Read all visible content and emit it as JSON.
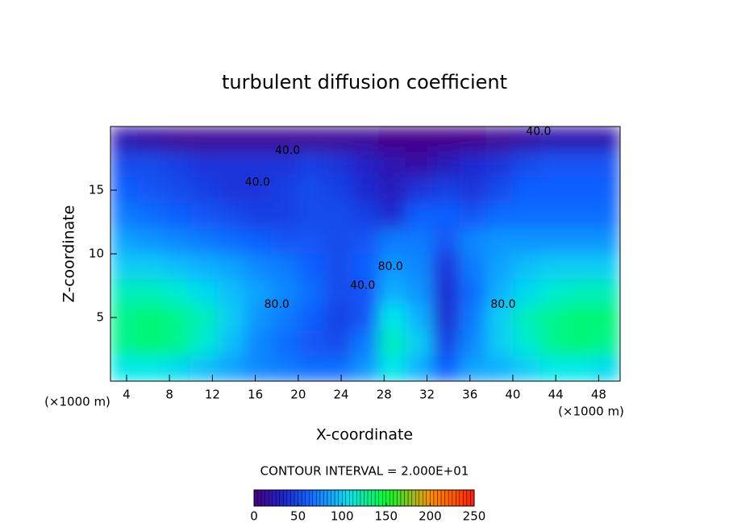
{
  "chart_data": {
    "type": "contour",
    "title": "turbulent diffusion coefficient",
    "x_label": "X-coordinate",
    "y_label": "Z-coordinate",
    "x_unit": "(×1000 m)",
    "y_unit": "(×1000 m)",
    "xlim": [
      2.5,
      50
    ],
    "ylim": [
      0,
      20
    ],
    "xticks": [
      4,
      8,
      12,
      16,
      20,
      24,
      28,
      32,
      36,
      40,
      44,
      48
    ],
    "yticks": [
      5,
      10,
      15
    ],
    "x": [
      3.75,
      6.25,
      8.75,
      11.25,
      13.75,
      16.25,
      18.75,
      21.25,
      23.75,
      26.25,
      28.75,
      31.25,
      33.75,
      36.25,
      38.75,
      41.25,
      43.75,
      46.25,
      48.75
    ],
    "y": [
      19,
      17,
      15,
      13,
      11,
      9,
      7,
      5,
      3,
      1
    ],
    "z": [
      [
        20,
        15,
        10,
        10,
        10,
        10,
        10,
        10,
        10,
        10,
        5,
        5,
        5,
        5,
        10,
        15,
        20,
        20,
        20
      ],
      [
        50,
        50,
        45,
        40,
        40,
        40,
        40,
        45,
        40,
        30,
        20,
        15,
        25,
        35,
        40,
        50,
        55,
        55,
        55
      ],
      [
        60,
        55,
        50,
        45,
        40,
        40,
        45,
        50,
        45,
        35,
        25,
        40,
        45,
        40,
        50,
        60,
        60,
        60,
        60
      ],
      [
        70,
        65,
        60,
        55,
        50,
        45,
        45,
        50,
        50,
        45,
        35,
        60,
        60,
        55,
        65,
        65,
        65,
        65,
        65
      ],
      [
        85,
        80,
        75,
        70,
        65,
        60,
        55,
        55,
        50,
        55,
        70,
        70,
        55,
        75,
        80,
        80,
        80,
        80,
        80
      ],
      [
        100,
        100,
        95,
        90,
        85,
        75,
        70,
        60,
        50,
        60,
        80,
        75,
        40,
        70,
        85,
        95,
        100,
        100,
        100
      ],
      [
        120,
        120,
        115,
        105,
        95,
        85,
        75,
        65,
        50,
        55,
        90,
        80,
        35,
        65,
        90,
        105,
        115,
        120,
        120
      ],
      [
        130,
        135,
        130,
        120,
        100,
        80,
        70,
        60,
        45,
        55,
        110,
        90,
        35,
        70,
        100,
        120,
        130,
        135,
        135
      ],
      [
        130,
        135,
        130,
        115,
        95,
        75,
        65,
        55,
        50,
        70,
        120,
        100,
        45,
        75,
        100,
        115,
        130,
        135,
        130
      ],
      [
        110,
        110,
        105,
        95,
        85,
        75,
        70,
        65,
        65,
        80,
        110,
        90,
        60,
        85,
        90,
        100,
        110,
        110,
        105
      ]
    ],
    "contour_labels": [
      {
        "x": 19.0,
        "y": 18.1,
        "value": 40,
        "label": "40.0"
      },
      {
        "x": 16.2,
        "y": 15.6,
        "value": 40,
        "label": "40.0"
      },
      {
        "x": 26.0,
        "y": 7.5,
        "value": 40,
        "label": "40.0"
      },
      {
        "x": 42.4,
        "y": 19.6,
        "value": 40,
        "label": "40.0"
      },
      {
        "x": 28.6,
        "y": 9.0,
        "value": 80,
        "label": "80.0"
      },
      {
        "x": 18.0,
        "y": 6.0,
        "value": 80,
        "label": "80.0"
      },
      {
        "x": 39.1,
        "y": 6.0,
        "value": 80,
        "label": "80.0"
      }
    ],
    "contour_interval_text": "CONTOUR INTERVAL = 2.000E+01",
    "colorbar_lim": [
      0,
      250
    ],
    "colorbar_ticks": [
      0,
      50,
      100,
      150,
      200,
      250
    ],
    "colorscale": [
      [
        0,
        "#4a0080"
      ],
      [
        30,
        "#2020c8"
      ],
      [
        60,
        "#1060ff"
      ],
      [
        90,
        "#10b0ff"
      ],
      [
        110,
        "#00e8e8"
      ],
      [
        150,
        "#00ff30"
      ],
      [
        200,
        "#ff9000"
      ],
      [
        250,
        "#ff2000"
      ]
    ]
  }
}
